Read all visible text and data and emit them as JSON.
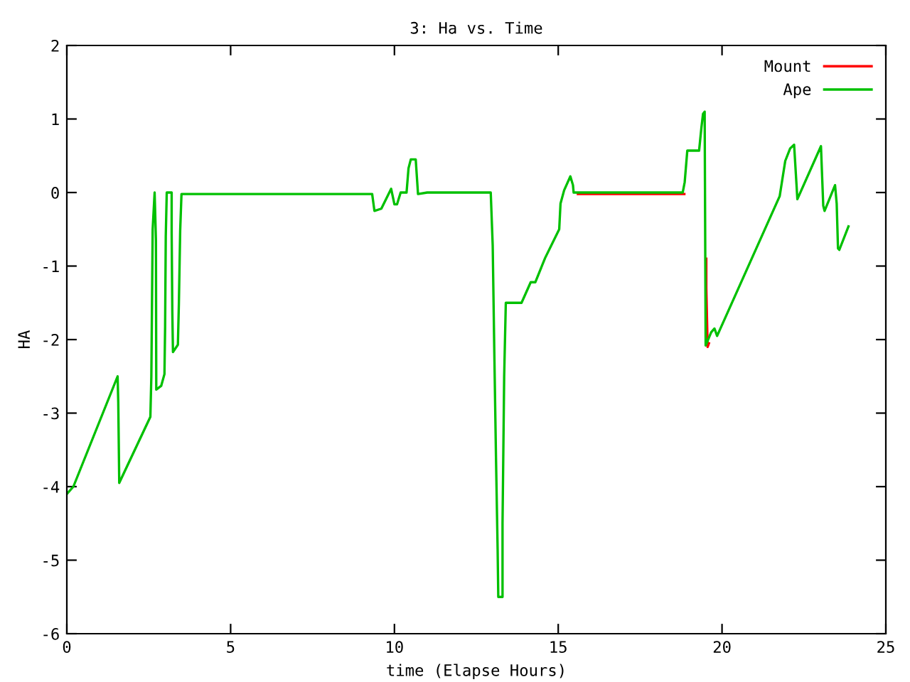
{
  "chart_data": {
    "type": "line",
    "title": "3: Ha vs. Time",
    "xlabel": "time (Elapse Hours)",
    "ylabel": "HA",
    "xlim": [
      0,
      25
    ],
    "ylim": [
      -6,
      2
    ],
    "xticks": [
      0,
      5,
      10,
      15,
      20,
      25
    ],
    "yticks": [
      -6,
      -5,
      -4,
      -3,
      -2,
      -1,
      0,
      1,
      2
    ],
    "grid": false,
    "legend": "top right",
    "marker": "none",
    "line_style": "solid",
    "series": [
      {
        "name": "Mount",
        "color": "#ff0000",
        "x": [
          15.6,
          18.85,
          18.9,
          19.52,
          19.52,
          19.56,
          19.6
        ],
        "values": [
          -0.02,
          -0.02,
          null,
          -0.9,
          -1.3,
          -2.1,
          -2.05
        ]
      },
      {
        "name": "Ape",
        "color": "#00c000",
        "x": [
          0,
          0.2,
          1.55,
          1.57,
          1.6,
          2.55,
          2.58,
          2.6,
          2.62,
          2.68,
          2.72,
          2.73,
          2.88,
          2.98,
          3.0,
          3.02,
          3.05,
          3.2,
          3.2,
          3.22,
          3.24,
          3.39,
          3.42,
          3.46,
          3.5,
          9.32,
          9.39,
          9.6,
          9.9,
          10.0,
          10.08,
          10.19,
          10.37,
          10.43,
          10.5,
          10.65,
          10.72,
          11.0,
          12.94,
          13.0,
          13.05,
          13.1,
          13.15,
          13.17,
          13.3,
          13.3,
          13.35,
          13.4,
          13.88,
          14.16,
          14.3,
          14.6,
          15.03,
          15.07,
          15.18,
          15.37,
          15.45,
          15.47,
          18.8,
          18.86,
          18.94,
          19.3,
          19.37,
          19.42,
          19.47,
          19.5,
          19.67,
          19.77,
          19.85,
          21.76,
          21.93,
          22.08,
          22.2,
          22.3,
          23.02,
          23.09,
          23.13,
          23.45,
          23.5,
          23.54,
          23.58,
          23.86
        ],
        "values": [
          -4.1,
          -4.0,
          -2.5,
          -2.85,
          -3.95,
          -3.05,
          -2.5,
          -1.5,
          -0.5,
          0,
          -0.65,
          -2.68,
          -2.63,
          -2.47,
          -1.83,
          -0.6,
          0,
          0,
          -0.55,
          -1.62,
          -2.17,
          -2.07,
          -1.52,
          -0.52,
          -0.02,
          -0.02,
          -0.25,
          -0.22,
          0.05,
          -0.16,
          -0.16,
          0,
          0,
          0.33,
          0.45,
          0.45,
          -0.02,
          0,
          0,
          -0.72,
          -2.2,
          -3.6,
          -4.85,
          -5.5,
          -5.5,
          -4.5,
          -2.5,
          -1.5,
          -1.5,
          -1.22,
          -1.22,
          -0.89,
          -0.5,
          -0.15,
          0.03,
          0.22,
          0.1,
          0,
          0,
          0.14,
          0.57,
          0.57,
          0.88,
          1.07,
          1.1,
          -2.08,
          -1.9,
          -1.85,
          -1.95,
          -0.05,
          0.43,
          0.6,
          0.65,
          -0.09,
          0.63,
          -0.18,
          -0.25,
          0.1,
          -0.15,
          -0.76,
          -0.78,
          -0.46
        ]
      }
    ]
  }
}
